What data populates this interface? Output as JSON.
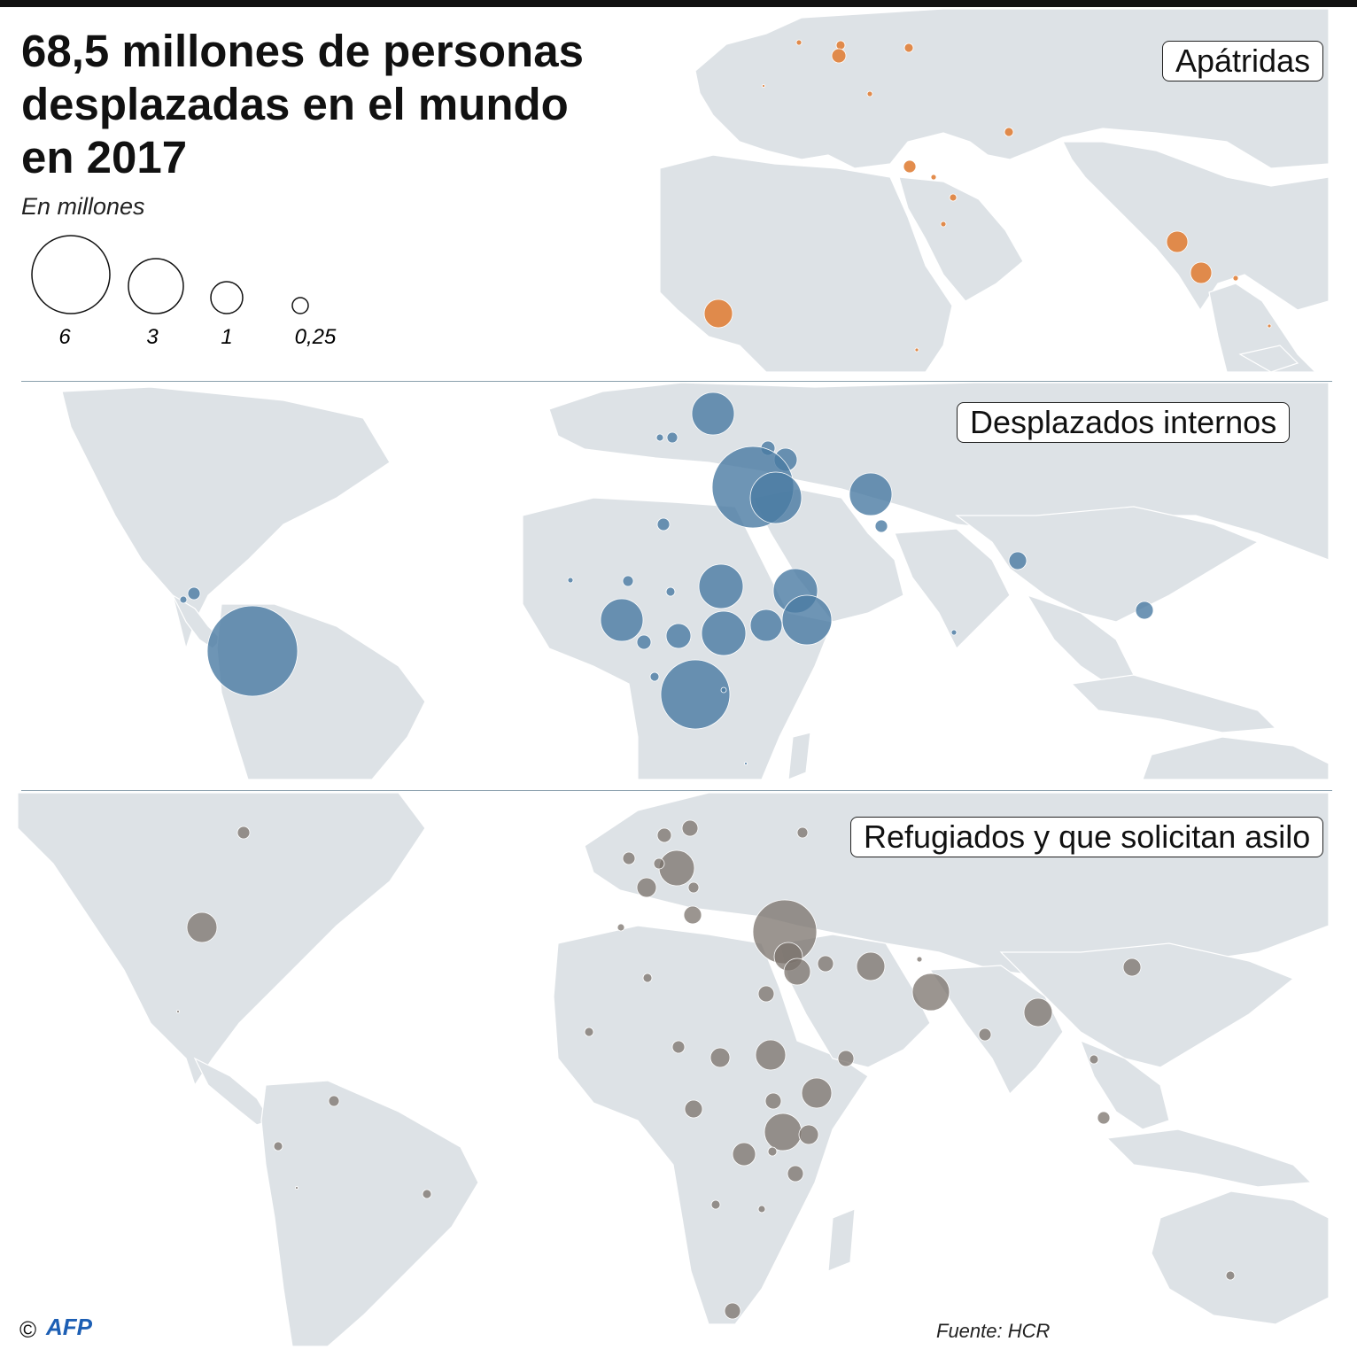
{
  "title_lines": [
    "68,5 millones de personas",
    "desplazadas en el mundo",
    "en 2017"
  ],
  "subtitle": "En millones",
  "legend": {
    "labels": [
      "6",
      "3",
      "1",
      "0,25"
    ],
    "values_millions": [
      6,
      3,
      1,
      0.25
    ]
  },
  "panels": {
    "stateless": {
      "label": "Apátridas",
      "color": "#e0813a"
    },
    "idp": {
      "label": "Desplazados internos",
      "color": "#4a7aa3"
    },
    "refugees": {
      "label": "Refugiados y que solicitan asilo",
      "color": "#7a716b"
    }
  },
  "colors": {
    "land": "#dde2e6",
    "ocean": "#ffffff",
    "border": "#ffffff"
  },
  "footer": {
    "copyright": "©",
    "logo": "AFP",
    "source": "Fuente: HCR"
  }
}
